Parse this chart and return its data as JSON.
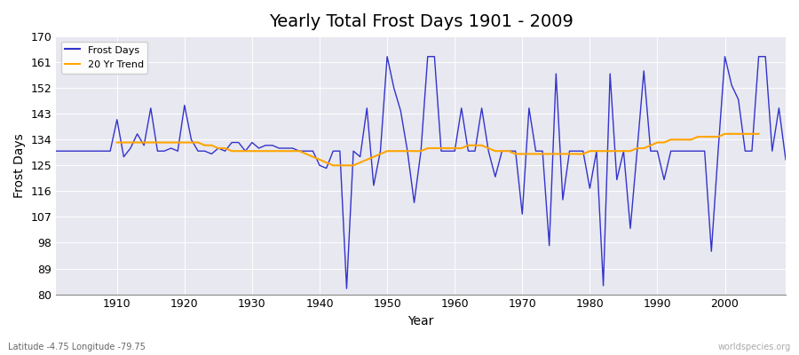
{
  "title": "Yearly Total Frost Days 1901 - 2009",
  "ylabel": "Frost Days",
  "xlabel": "Year",
  "bottom_left_label": "Latitude -4.75 Longitude -79.75",
  "bottom_right_label": "worldspecies.org",
  "ylim": [
    80,
    170
  ],
  "yticks": [
    80,
    89,
    98,
    107,
    116,
    125,
    134,
    143,
    152,
    161,
    170
  ],
  "xlim": [
    1901,
    2009
  ],
  "bg_color": "#e8e8f0",
  "plot_bg_color": "#e8e8f0",
  "frost_color": "#3333cc",
  "trend_color": "#ffa500",
  "years": [
    1901,
    1902,
    1903,
    1904,
    1905,
    1906,
    1907,
    1908,
    1909,
    1910,
    1911,
    1912,
    1913,
    1914,
    1915,
    1916,
    1917,
    1918,
    1919,
    1920,
    1921,
    1922,
    1923,
    1924,
    1925,
    1926,
    1927,
    1928,
    1929,
    1930,
    1931,
    1932,
    1933,
    1934,
    1935,
    1936,
    1937,
    1938,
    1939,
    1940,
    1941,
    1942,
    1943,
    1944,
    1945,
    1946,
    1947,
    1948,
    1949,
    1950,
    1951,
    1952,
    1953,
    1954,
    1955,
    1956,
    1957,
    1958,
    1959,
    1960,
    1961,
    1962,
    1963,
    1964,
    1965,
    1966,
    1967,
    1968,
    1969,
    1970,
    1971,
    1972,
    1973,
    1974,
    1975,
    1976,
    1977,
    1978,
    1979,
    1980,
    1981,
    1982,
    1983,
    1984,
    1985,
    1986,
    1987,
    1988,
    1989,
    1990,
    1991,
    1992,
    1993,
    1994,
    1995,
    1996,
    1997,
    1998,
    1999,
    2000,
    2001,
    2002,
    2003,
    2004,
    2005,
    2006,
    2007,
    2008,
    2009
  ],
  "frost_days": [
    130,
    130,
    130,
    130,
    130,
    130,
    130,
    130,
    130,
    141,
    128,
    131,
    136,
    132,
    145,
    130,
    130,
    131,
    130,
    146,
    134,
    130,
    130,
    129,
    131,
    130,
    133,
    133,
    130,
    133,
    131,
    132,
    132,
    131,
    131,
    131,
    130,
    130,
    130,
    125,
    124,
    130,
    130,
    82,
    130,
    128,
    145,
    118,
    130,
    163,
    152,
    144,
    130,
    112,
    130,
    163,
    163,
    130,
    130,
    130,
    145,
    130,
    130,
    145,
    130,
    121,
    130,
    130,
    130,
    108,
    145,
    130,
    130,
    97,
    157,
    113,
    130,
    130,
    130,
    117,
    130,
    83,
    157,
    120,
    130,
    103,
    130,
    158,
    130,
    130,
    120,
    130,
    130,
    130,
    130,
    130,
    130,
    95,
    130,
    163,
    153,
    148,
    130,
    130,
    163,
    163,
    130,
    145,
    127
  ],
  "trend_days": [
    null,
    null,
    null,
    null,
    null,
    null,
    null,
    null,
    null,
    133,
    133,
    133,
    133,
    133,
    133,
    133,
    133,
    133,
    133,
    133,
    133,
    133,
    132,
    132,
    131,
    131,
    130,
    130,
    130,
    130,
    130,
    130,
    130,
    130,
    130,
    130,
    130,
    129,
    128,
    127,
    126,
    125,
    125,
    125,
    125,
    126,
    127,
    128,
    129,
    130,
    130,
    130,
    130,
    130,
    130,
    131,
    131,
    131,
    131,
    131,
    131,
    132,
    132,
    132,
    131,
    130,
    130,
    130,
    129,
    129,
    129,
    129,
    129,
    129,
    129,
    129,
    129,
    129,
    129,
    130,
    130,
    130,
    130,
    130,
    130,
    130,
    131,
    131,
    132,
    133,
    133,
    134,
    134,
    134,
    134,
    135,
    135,
    135,
    135,
    136,
    136,
    136,
    136,
    136,
    136,
    null,
    null,
    null,
    null
  ]
}
